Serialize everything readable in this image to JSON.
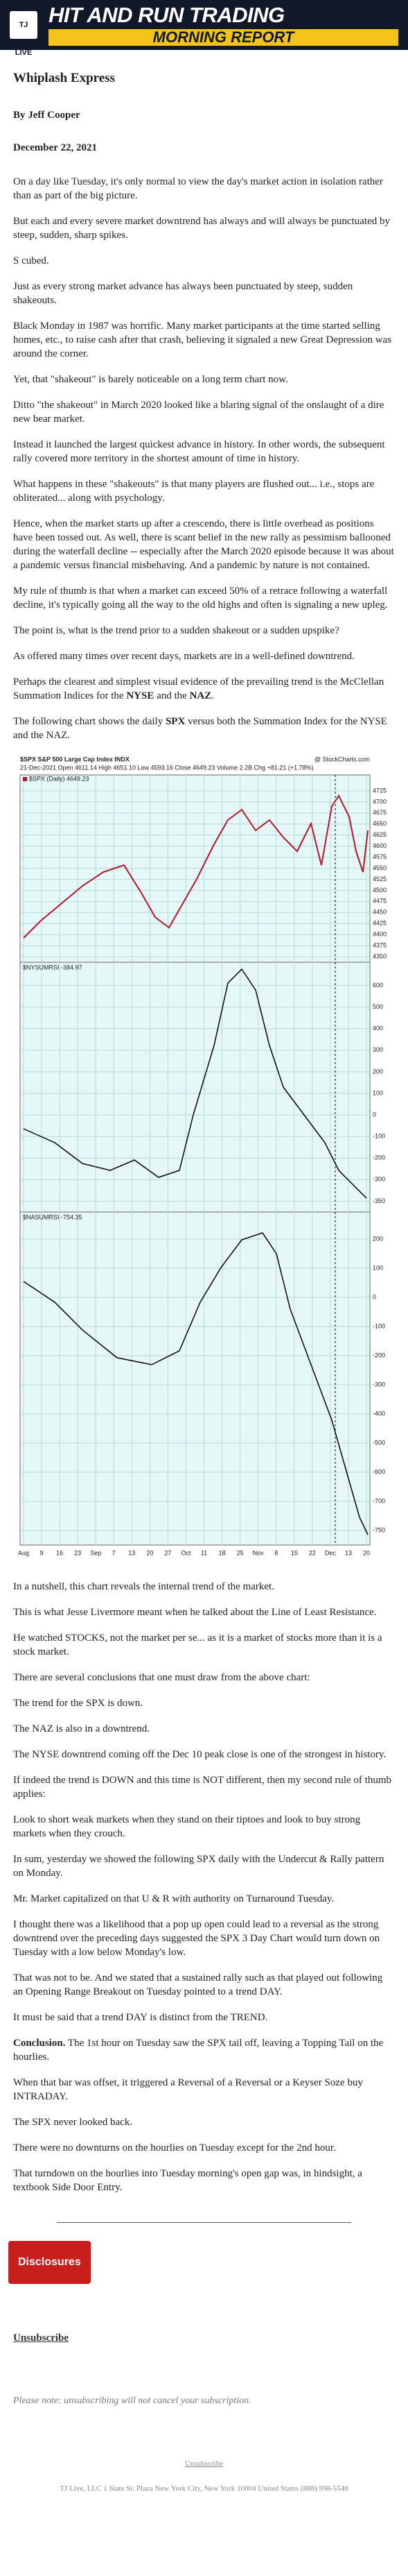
{
  "header": {
    "logo": "TJ LIVE",
    "title": "HIT AND RUN TRADING",
    "subtitle": "MORNING REPORT"
  },
  "article": {
    "title": "Whiplash Express",
    "byline": "By Jeff Cooper",
    "date": "December 22, 2021",
    "body_before": [
      [
        "On a day like Tuesday, it's only normal to view the day's market action in isolation rather than as part of the big picture."
      ],
      [
        "But each and every severe market downtrend has always and will always be punctuated by steep, sudden, sharp spikes."
      ],
      [
        "S cubed."
      ],
      [
        "Just as every strong market advance has always been punctuated by steep, sudden shakeouts."
      ],
      [
        "Black Monday in 1987 was horrific. Many market participants at the time started selling homes, etc., to raise cash after that crash, believing it signaled a new Great Depression was around the corner."
      ],
      [
        "Yet, that \"shakeout\" is barely noticeable on a long term chart now."
      ],
      [
        "Ditto \"the shakeout\" in March 2020 looked like a blaring signal of the onslaught of a dire new bear market."
      ],
      [
        "Instead it launched the largest quickest advance in history. In other words, the subsequent rally covered more territory in the shortest amount of time in history."
      ],
      [
        "What happens in these \"shakeouts\" is that many players are flushed out... i.e., stops are obliterated... along with psychology."
      ],
      [
        "Hence, when the market starts up after a crescendo, there is little overhead as positions have been tossed out. As well, there is scant belief in the new rally as pessimism ballooned during the waterfall decline -- especially after the March 2020 episode because it was about a pandemic versus financial misbehaving. And a pandemic by nature is not contained."
      ],
      [
        "My rule of thumb is that when a market can exceed 50% of a retrace following a waterfall decline, it's typically going all the way to the old highs and often is signaling a new upleg."
      ],
      [
        "The point is, what is the trend prior to a sudden shakeout or a sudden upspike?"
      ],
      [
        "As offered many times over recent days, markets are in a well-defined downtrend."
      ],
      [
        "Perhaps the clearest and simplest visual evidence of the prevailing trend is the McClellan Summation Indices for the ",
        {
          "text": "NYSE",
          "bold": true
        },
        " and the ",
        {
          "text": "NAZ",
          "bold": true
        },
        "."
      ],
      [
        "The following chart shows the daily ",
        {
          "text": "SPX",
          "bold": true
        },
        " versus both the Summation Index for the NYSE and the NAZ."
      ]
    ],
    "figure": {
      "symbol": "$SPX S&P 500 Large Cap Index INDX",
      "source": "@ StockCharts.com",
      "quote": "21-Dec-2021  Open 4611.14  High 4651.10  Low 4593.16  Close 4649.23  Volume 2.2B  Chg +81.21 (+1.78%)",
      "legend": "$SPX (Daily) 4649.23",
      "panel2": "$NYSUMRSI -384.97",
      "panel3": "$NASUMRSI -754.35",
      "price_ticks": [
        "4725",
        "4700",
        "4675",
        "4650",
        "4625",
        "4600",
        "4575",
        "4550",
        "4525",
        "4500",
        "4475",
        "4450",
        "4425",
        "4400",
        "4375",
        "4350"
      ],
      "panel2_ticks": [
        "600",
        "500",
        "400",
        "300",
        "200",
        "100",
        "0",
        "-100",
        "-200",
        "-300",
        "-350"
      ],
      "panel3_ticks": [
        "200",
        "100",
        "0",
        "-100",
        "-200",
        "-300",
        "-400",
        "-500",
        "-600",
        "-700",
        "-750"
      ],
      "x_labels": [
        "Aug",
        "9",
        "16",
        "23",
        "Sep",
        "7",
        "13",
        "20",
        "27",
        "Oct",
        "11",
        "18",
        "25",
        "Nov",
        "8",
        "15",
        "22",
        "Dec",
        "13",
        "20"
      ]
    },
    "body_after": [
      [
        "In a nutshell, this chart reveals the internal trend of the market."
      ],
      [
        "This is what Jesse Livermore meant when he talked about the Line of Least Resistance."
      ],
      [
        "He watched STOCKS, not the market per se... as it is a market of stocks more than it is a stock market."
      ],
      [
        "There are several conclusions that one must draw from the above chart:"
      ],
      [
        "The trend for the SPX is down."
      ],
      [
        "The NAZ is also in a downtrend."
      ],
      [
        "The NYSE downtrend coming off the Dec 10 peak close is one of the strongest in history."
      ],
      [
        "If indeed the trend is DOWN and this time is NOT different, then my second rule of thumb applies:"
      ],
      [
        "Look to short weak markets when they stand on their tiptoes and look to buy strong markets when they crouch."
      ],
      [
        "In sum, yesterday we showed the following SPX daily with the Undercut & Rally pattern on Monday."
      ],
      [
        "Mr. Market capitalized on that U & R with authority on Turnaround Tuesday."
      ],
      [
        "I thought there was a likelihood that a pop up open could lead to a reversal as the strong downtrend over the preceding days suggested the SPX 3 Day Chart would turn down on Tuesday with a low below Monday's low."
      ],
      [
        "That was not to be. And we stated that a sustained rally such as that played out following an Opening Range Breakout on Tuesday pointed to a trend DAY."
      ],
      [
        "It must be said that a trend DAY is distinct from the TREND."
      ],
      [
        {
          "text": "Conclusion.",
          "bold": true
        },
        " The 1st hour on Tuesday saw the SPX tail off, leaving a Topping Tail on the hourlies."
      ],
      [
        "When that bar was offset, it triggered a Reversal of a Reversal or a Keyser Soze buy INTRADAY."
      ],
      [
        "The SPX never looked back."
      ],
      [
        "There were no downturns on the hourlies on Tuesday except for the 2nd hour."
      ],
      [
        "That turndown on the hourlies into Tuesday morning's open gap was, in hindsight, a textbook Side Door Entry."
      ]
    ]
  },
  "footer": {
    "disclosures": "Disclosures",
    "unsubscribe": "Unsubscribe",
    "note": "Please note: unsubscribing will not cancel your subscription.",
    "small_unsubscribe": "Unsubscribe",
    "address": "TJ Live, LLC 1 State St. Plaza New York City, New York 10004 United States (888) 998-5548"
  }
}
